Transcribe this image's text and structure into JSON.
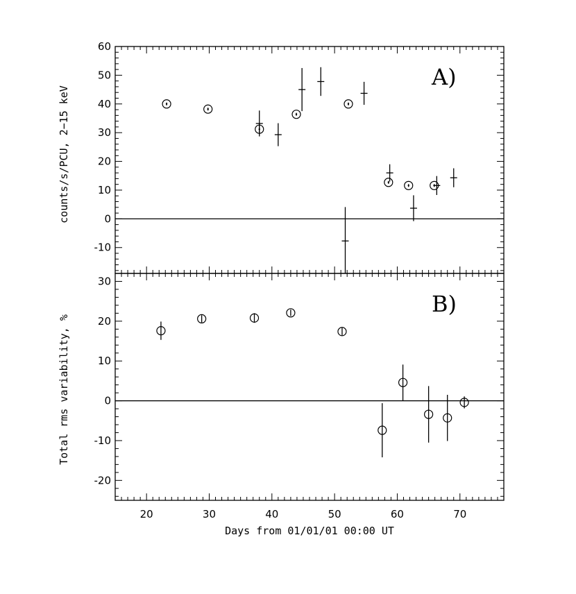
{
  "chart_data": [
    {
      "type": "scatter",
      "panel_label": "A)",
      "xlabel": "",
      "ylabel": "counts/s/PCU, 2−15 keV",
      "xlim": [
        15,
        77
      ],
      "ylim": [
        -19,
        60
      ],
      "yticks": [
        -10,
        0,
        10,
        20,
        30,
        40,
        50,
        60
      ],
      "zero_line": true,
      "series": [
        {
          "marker": "circle-dot",
          "points": [
            {
              "x": 23.2,
              "y": 40.0,
              "err": 0.5
            },
            {
              "x": 29.8,
              "y": 38.2,
              "err": 0.5
            },
            {
              "x": 38.0,
              "y": 31.2,
              "err": 1.8
            },
            {
              "x": 43.9,
              "y": 36.4,
              "err": 0.5
            },
            {
              "x": 52.2,
              "y": 40.0,
              "err": 0.5
            },
            {
              "x": 58.6,
              "y": 12.7,
              "err": 0.5
            },
            {
              "x": 61.8,
              "y": 11.6,
              "err": 0.5
            },
            {
              "x": 65.9,
              "y": 11.6,
              "err": 0.5
            }
          ]
        },
        {
          "marker": "cross",
          "points": [
            {
              "x": 38.0,
              "y": 33.2,
              "err": 4.5
            },
            {
              "x": 41.0,
              "y": 29.3,
              "err": 4.0
            },
            {
              "x": 44.8,
              "y": 45.0,
              "err": 7.5
            },
            {
              "x": 47.8,
              "y": 47.8,
              "err": 5.0
            },
            {
              "x": 51.7,
              "y": -7.7,
              "err": 11.8
            },
            {
              "x": 54.7,
              "y": 43.7,
              "err": 4.0
            },
            {
              "x": 58.8,
              "y": 16.0,
              "err": 3.0
            },
            {
              "x": 62.6,
              "y": 3.7,
              "err": 4.5
            },
            {
              "x": 66.3,
              "y": 11.6,
              "err": 3.3
            },
            {
              "x": 69.0,
              "y": 14.3,
              "err": 3.3
            }
          ]
        }
      ]
    },
    {
      "type": "scatter",
      "panel_label": "B)",
      "xlabel": "Days from 01/01/01 00:00 UT",
      "ylabel": "Total rms variability, %",
      "xlim": [
        15,
        77
      ],
      "ylim": [
        -25,
        32
      ],
      "xticks": [
        20,
        30,
        40,
        50,
        60,
        70
      ],
      "yticks": [
        -20,
        -10,
        0,
        10,
        20,
        30
      ],
      "zero_line": true,
      "series": [
        {
          "marker": "circle",
          "points": [
            {
              "x": 22.3,
              "y": 17.6,
              "err": 2.3
            },
            {
              "x": 28.8,
              "y": 20.6,
              "err": 0.9
            },
            {
              "x": 37.2,
              "y": 20.8,
              "err": 1.2
            },
            {
              "x": 43.0,
              "y": 22.1,
              "err": 0.8
            },
            {
              "x": 51.2,
              "y": 17.4,
              "err": 0.9
            },
            {
              "x": 57.6,
              "y": -7.4,
              "err": 6.8
            },
            {
              "x": 60.9,
              "y": 4.6,
              "err": 4.5
            },
            {
              "x": 65.0,
              "y": -3.4,
              "err": 7.1
            },
            {
              "x": 68.0,
              "y": -4.3,
              "err": 5.8
            },
            {
              "x": 70.7,
              "y": -0.4,
              "err": 1.5
            }
          ]
        }
      ]
    }
  ]
}
